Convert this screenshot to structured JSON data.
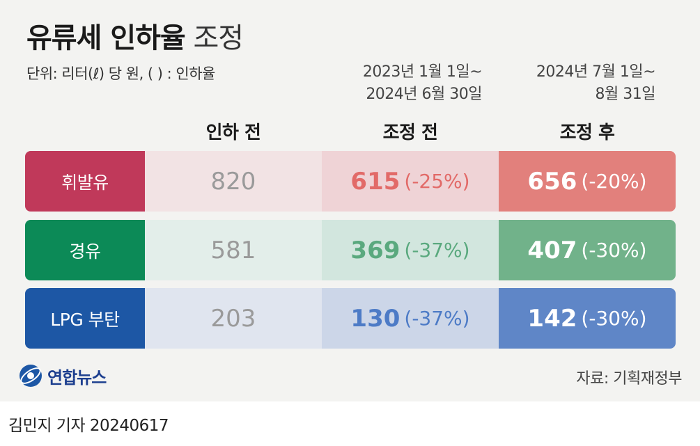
{
  "title_bold": "유류세 인하율",
  "title_light": "조정",
  "unit_note": "단위: 리터(ℓ) 당 원, ( ) : 인하율",
  "periods": {
    "prev_line1": "2023년 1월 1일~",
    "prev_line2": "2024년 6월 30일",
    "curr_line1": "2024년 7월 1일~",
    "curr_line2": "8월 31일"
  },
  "column_headers": {
    "before": "인하 전",
    "prev": "조정 전",
    "curr": "조정 후"
  },
  "chart_data": {
    "type": "table",
    "columns": [
      "인하 전",
      "조정 전",
      "조정 후"
    ],
    "rows": [
      {
        "category": "휘발유",
        "before": "820",
        "prev": "615",
        "prev_pct": "(-25%)",
        "curr": "656",
        "curr_pct": "(-20%)"
      },
      {
        "category": "경유",
        "before": "581",
        "prev": "369",
        "prev_pct": "(-37%)",
        "curr": "407",
        "curr_pct": "(-30%)"
      },
      {
        "category": "LPG 부탄",
        "before": "203",
        "prev": "130",
        "prev_pct": "(-37%)",
        "curr": "142",
        "curr_pct": "(-30%)"
      }
    ]
  },
  "colors": {
    "gasoline_label": "#c0395a",
    "gasoline_prev_bg": "#efd3d6",
    "gasoline_prev_text": "#e26a68",
    "gasoline_curr_bg": "#e2807c",
    "gasoline_before_bg": "#f2e3e4",
    "diesel_label": "#0c8a57",
    "diesel_prev_bg": "#d2e6de",
    "diesel_prev_text": "#5aa97e",
    "diesel_curr_bg": "#71b28a",
    "diesel_before_bg": "#e3eeea",
    "lpg_label": "#1d57a5",
    "lpg_prev_bg": "#ccd6e8",
    "lpg_prev_text": "#4d7bc6",
    "lpg_curr_bg": "#5f86c7",
    "lpg_before_bg": "#e0e5ef"
  },
  "logo": {
    "text": "연합뉴스",
    "icon": "yonhap-globe-icon"
  },
  "source": "자료: 기획재정부",
  "byline": "김민지 기자  20240617"
}
